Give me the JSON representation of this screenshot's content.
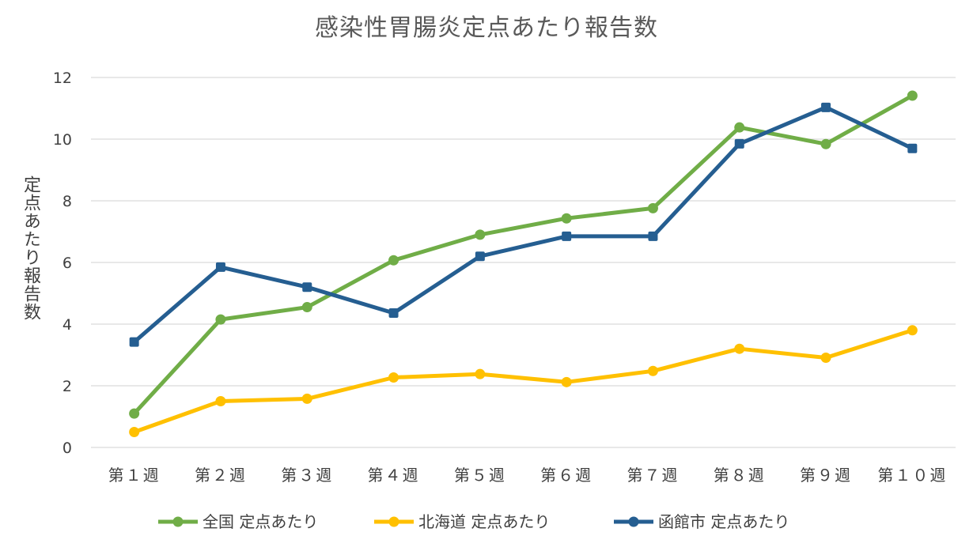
{
  "chart_data": {
    "type": "line",
    "title": "感染性胃腸炎定点あたり報告数",
    "ylabel": "定点あたり報告数",
    "xlabel": "",
    "categories": [
      "第１週",
      "第２週",
      "第３週",
      "第４週",
      "第５週",
      "第６週",
      "第７週",
      "第８週",
      "第９週",
      "第１０週"
    ],
    "ylim": [
      0,
      12
    ],
    "yticks": [
      0,
      2,
      4,
      6,
      8,
      10,
      12
    ],
    "grid": true,
    "legend_position": "bottom",
    "series": [
      {
        "name": "全国 定点あたり",
        "color": "#70AD47",
        "marker": "circle",
        "values": [
          1.1,
          4.15,
          4.55,
          6.07,
          6.9,
          7.43,
          7.76,
          10.38,
          9.84,
          11.41
        ]
      },
      {
        "name": "北海道 定点あたり",
        "color": "#FFC000",
        "marker": "circle",
        "values": [
          0.5,
          1.5,
          1.58,
          2.27,
          2.38,
          2.12,
          2.48,
          3.2,
          2.91,
          3.8
        ]
      },
      {
        "name": "函館市 定点あたり",
        "color": "#255E91",
        "marker": "square",
        "values": [
          3.42,
          5.85,
          5.2,
          4.36,
          6.2,
          6.85,
          6.85,
          9.85,
          11.03,
          9.7
        ]
      }
    ]
  }
}
